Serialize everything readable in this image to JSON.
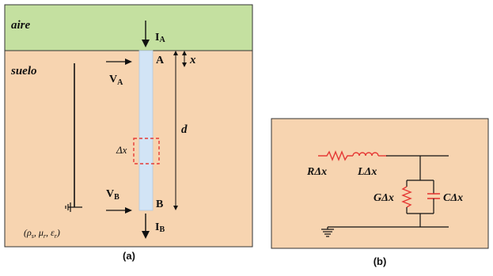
{
  "panel_a": {
    "caption": "(a)",
    "air_label": "aire",
    "soil_label": "suelo",
    "current_a": {
      "sym": "I",
      "sub": "A"
    },
    "current_b": {
      "sym": "I",
      "sub": "B"
    },
    "voltage_a": {
      "sym": "V",
      "sub": "A"
    },
    "voltage_b": {
      "sym": "V",
      "sub": "B"
    },
    "point_a": "A",
    "point_b": "B",
    "x_label": "x",
    "d_label": "d",
    "dx_label": "Δx",
    "params": {
      "open": "(",
      "rho": "ρ",
      "rho_sub": "s",
      "sep1": ", ",
      "mu": "μ",
      "mu_sub": "r",
      "sep2": ", ",
      "eps": "ε",
      "eps_sub": "r",
      "close": ")"
    }
  },
  "panel_b": {
    "caption": "(b)",
    "r_label": "RΔx",
    "l_label": "LΔx",
    "g_label": "GΔx",
    "c_label": "CΔx"
  },
  "colors": {
    "air": "#c4e0a0",
    "soil": "#f7d4b0",
    "electrode": "#d2e4f6",
    "component_red": "#e53935",
    "dashed_box": "#e53935"
  }
}
